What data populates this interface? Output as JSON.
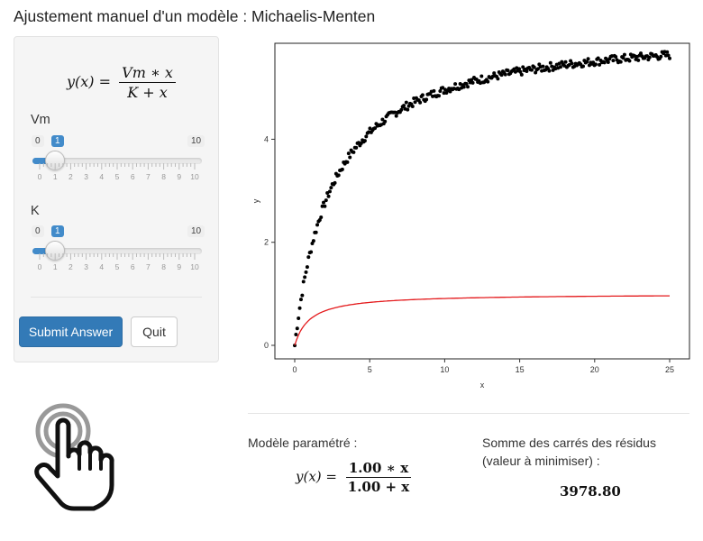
{
  "title": "Ajustement manuel d'un modèle : Michaelis-Menten",
  "formula": {
    "lhs": "y(x) =",
    "numerator": "Vm ∗ x",
    "denominator": "K + x"
  },
  "sliders": [
    {
      "label": "Vm",
      "min": 0,
      "max": 10,
      "value": 1,
      "min_label": "0",
      "max_label": "10",
      "value_label": "1"
    },
    {
      "label": "K",
      "min": 0,
      "max": 10,
      "value": 1,
      "min_label": "0",
      "max_label": "10",
      "value_label": "1"
    }
  ],
  "tick_labels": [
    "0",
    "1",
    "2",
    "3",
    "4",
    "5",
    "6",
    "7",
    "8",
    "9",
    "10"
  ],
  "buttons": {
    "submit": "Submit Answer",
    "quit": "Quit"
  },
  "icon": "touch-hand-icon",
  "fitted": {
    "label": "Modèle paramétré :",
    "lhs": "y(x) =",
    "numerator": "1.00 ∗ x",
    "denominator": "1.00 + x"
  },
  "sse": {
    "label_line1": "Somme des carrés des résidus",
    "label_line2": "(valeur à minimiser) :",
    "value": "3978.80"
  },
  "chart_data": {
    "type": "scatter",
    "xlabel": "x",
    "ylabel": "y",
    "xlim": [
      0,
      25
    ],
    "ylim": [
      0,
      5.6
    ],
    "x_ticks": [
      0,
      5,
      10,
      15,
      20,
      25
    ],
    "y_ticks": [
      0,
      2,
      4
    ],
    "grid": false,
    "series": [
      {
        "kind": "points",
        "color": "#000000",
        "model": {
          "Vm": 6.2,
          "K": 2.5
        },
        "x_range": [
          0,
          25
        ],
        "n": 300
      },
      {
        "kind": "line",
        "color": "#e41a1c",
        "model": {
          "Vm": 1.0,
          "K": 1.0
        },
        "x_range": [
          0,
          25
        ]
      }
    ]
  }
}
